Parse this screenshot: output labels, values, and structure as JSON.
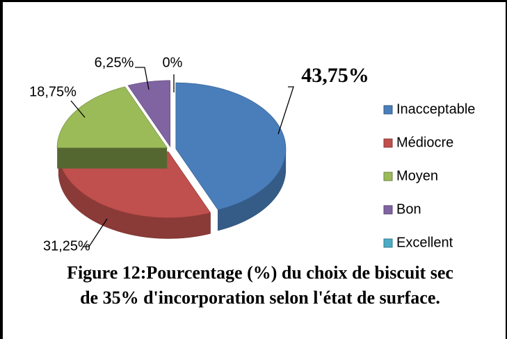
{
  "chart_data": {
    "type": "pie",
    "title": "Figure 12:Pourcentage (%) du choix de biscuit sec de 35% d'incorporation selon l'état de surface.",
    "categories": [
      "Inacceptable",
      "Médiocre",
      "Moyen",
      "Bon",
      "Excellent"
    ],
    "values": [
      43.75,
      31.25,
      18.75,
      6.25,
      0
    ],
    "value_labels": [
      "43,75%",
      "31,25%",
      "18,75%",
      "6,25%",
      "0%"
    ],
    "colors": [
      "#4a7ebb",
      "#c0504d",
      "#9bbb59",
      "#8064a2",
      "#4bacc6"
    ],
    "legend": "right"
  }
}
